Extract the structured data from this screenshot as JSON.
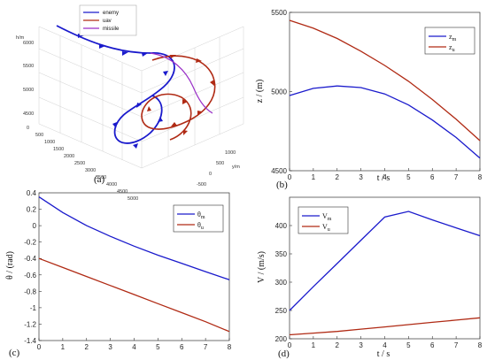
{
  "colors": {
    "m": "#1a1acc",
    "u": "#b02a14",
    "missile": "#9a2fc8"
  },
  "chart_data": [
    {
      "id": "a",
      "type": "line3d",
      "panel_label": "(a)",
      "zlabel": "h/m",
      "ylabel": "y/m",
      "legend": [
        "enemy",
        "uav",
        "missile"
      ],
      "x_ticks": [
        "0",
        "500",
        "1000",
        "1500",
        "2000",
        "2500",
        "3000",
        "3500",
        "4000",
        "4500",
        "5000"
      ],
      "y_ticks": [
        "1000",
        "500",
        "0",
        "-500"
      ],
      "z_ticks": [
        "6000",
        "5500",
        "5000",
        "4500"
      ]
    },
    {
      "id": "b",
      "type": "line",
      "panel_label": "(b)",
      "xlabel": "t / s",
      "ylabel": "z / (m)",
      "xlim": [
        0,
        8
      ],
      "ylim": [
        4500,
        5500
      ],
      "x_ticks": [
        0,
        1,
        2,
        3,
        4,
        5,
        6,
        7,
        8
      ],
      "y_ticks": [
        4500,
        5000,
        5500
      ],
      "series": [
        {
          "name_main": "z",
          "name_sub": "m",
          "color_key": "m",
          "x": [
            0,
            1,
            2,
            3,
            4,
            5,
            6,
            7,
            8
          ],
          "y": [
            4975,
            5020,
            5035,
            5025,
            4985,
            4915,
            4820,
            4710,
            4580
          ]
        },
        {
          "name_main": "z",
          "name_sub": "u",
          "color_key": "u",
          "x": [
            0,
            1,
            2,
            3,
            4,
            5,
            6,
            7,
            8
          ],
          "y": [
            5450,
            5400,
            5335,
            5255,
            5165,
            5065,
            4950,
            4825,
            4690
          ]
        }
      ]
    },
    {
      "id": "c",
      "type": "line",
      "panel_label": "(c)",
      "xlabel": "",
      "ylabel": "θ / (rad)",
      "xlim": [
        0,
        8
      ],
      "ylim": [
        -1.4,
        0.4
      ],
      "x_ticks": [
        0,
        1,
        2,
        3,
        4,
        5,
        6,
        7,
        8
      ],
      "y_ticks": [
        -1.4,
        -1.2,
        -1,
        -0.8,
        -0.6,
        -0.4,
        -0.2,
        0,
        0.2,
        0.4
      ],
      "series": [
        {
          "name_main": "θ",
          "name_sub": "m",
          "color_key": "m",
          "x": [
            0,
            1,
            2,
            3,
            4,
            5,
            6,
            7,
            8
          ],
          "y": [
            0.35,
            0.16,
            0.0,
            -0.13,
            -0.25,
            -0.36,
            -0.46,
            -0.56,
            -0.66
          ]
        },
        {
          "name_main": "θ",
          "name_sub": "u",
          "color_key": "u",
          "x": [
            0,
            1,
            2,
            3,
            4,
            5,
            6,
            7,
            8
          ],
          "y": [
            -0.4,
            -0.51,
            -0.62,
            -0.73,
            -0.84,
            -0.95,
            -1.06,
            -1.17,
            -1.29
          ]
        }
      ]
    },
    {
      "id": "d",
      "type": "line",
      "panel_label": "(d)",
      "xlabel": "t / s",
      "ylabel": "V / (m/s)",
      "xlim": [
        0,
        8
      ],
      "ylim": [
        200,
        450
      ],
      "x_ticks": [
        0,
        1,
        2,
        3,
        4,
        5,
        6,
        7,
        8
      ],
      "y_ticks": [
        200,
        250,
        300,
        350,
        400
      ],
      "series": [
        {
          "name_main": "V",
          "name_sub": "m",
          "color_key": "m",
          "x": [
            0,
            1,
            2,
            3,
            4,
            5,
            6,
            7,
            8
          ],
          "y": [
            250,
            292,
            333,
            374,
            415,
            425,
            410,
            396,
            382
          ]
        },
        {
          "name_main": "V",
          "name_sub": "u",
          "color_key": "u",
          "x": [
            0,
            1,
            2,
            3,
            4,
            5,
            6,
            7,
            8
          ],
          "y": [
            207,
            210,
            213,
            217,
            221,
            225,
            229,
            233,
            237
          ]
        }
      ]
    }
  ]
}
